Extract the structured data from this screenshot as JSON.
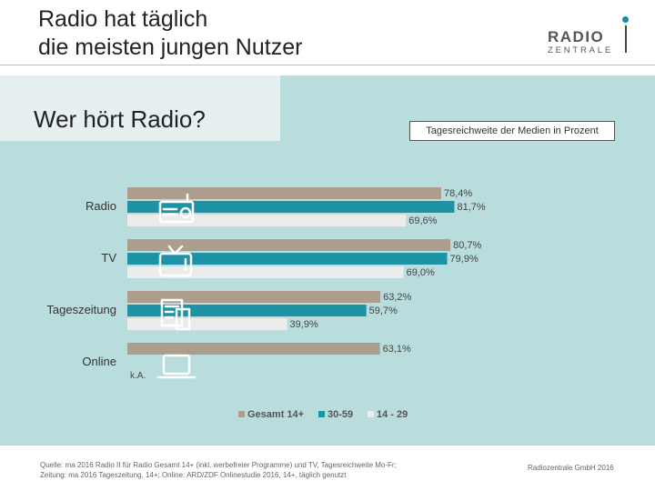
{
  "header": {
    "title_line1": "Radio hat täglich",
    "title_line2": "die meisten jungen Nutzer",
    "logo_top": "RADIO",
    "logo_bottom": "ZENTRALE"
  },
  "subtitle": "Wer hört Radio?",
  "caption": "Tagesreichweite der Medien in Prozent",
  "footer": {
    "source_line1": "Quelle: ma 2016 Radio II für Radio Gesamt 14+ (inkl. werbefreier Programme) und TV, Tagesreichweite Mo-Fr;",
    "source_line2": "Zeitung: ma 2016 Tageszeitung, 14+; Online: ARD/ZDF Onlinestudie 2016, 14+, täglich genutzt",
    "copyright": "Radiozentrale GmbH 2016"
  },
  "colors": {
    "gesamt": "#ad9d8d",
    "age30_59": "#1e93a6",
    "age14_29": "#ececec",
    "panel": "#b9dcdd"
  },
  "chart_data": {
    "type": "bar",
    "orientation": "horizontal",
    "title": "Tagesreichweite der Medien in Prozent",
    "categories": [
      "Radio",
      "TV",
      "Tageszeitung",
      "Online"
    ],
    "category_icons": [
      "radio-icon",
      "tv-icon",
      "newspaper-icon",
      "laptop-icon"
    ],
    "series": [
      {
        "name": "Gesamt 14+",
        "values": [
          78.4,
          80.7,
          63.2,
          63.1
        ],
        "labels": [
          "78,4%",
          "80,7%",
          "63,2%",
          "63,1%"
        ]
      },
      {
        "name": "30-59",
        "values": [
          81.7,
          79.9,
          59.7,
          null
        ],
        "labels": [
          "81,7%",
          "79,9%",
          "59,7%",
          ""
        ]
      },
      {
        "name": "14 - 29",
        "values": [
          69.6,
          69.0,
          39.9,
          null
        ],
        "labels": [
          "69,6%",
          "69,0%",
          "39,9%",
          ""
        ]
      }
    ],
    "missing_label": "k.A.",
    "xlim": [
      0,
      100
    ],
    "legend_position": "bottom-center"
  }
}
